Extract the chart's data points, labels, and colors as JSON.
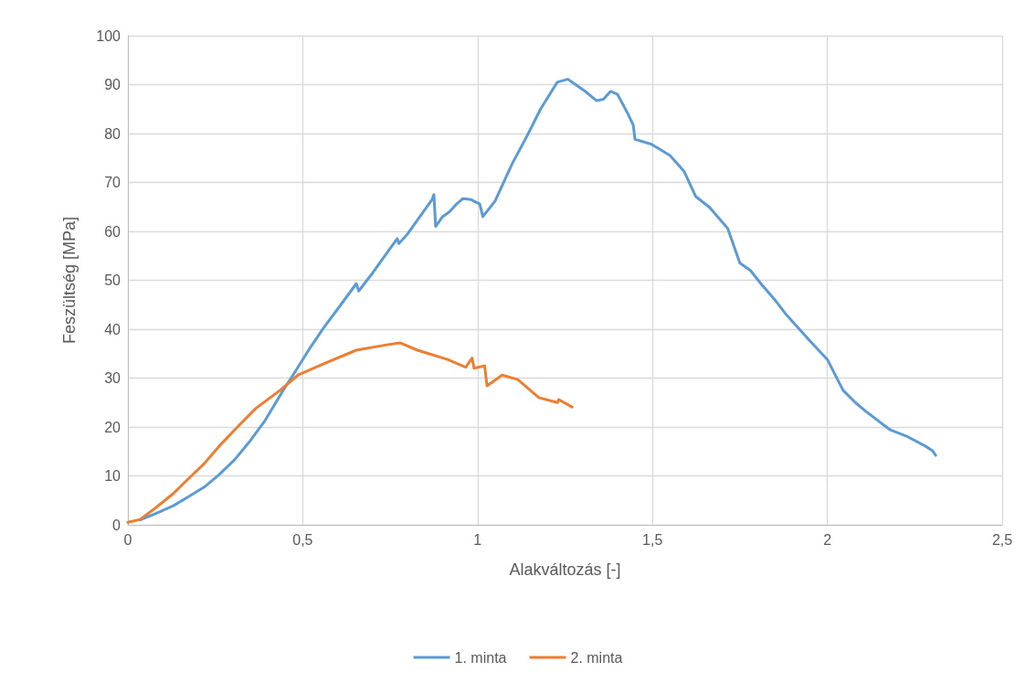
{
  "chart_data": {
    "type": "line",
    "xlabel": "Alakváltozás [-]",
    "ylabel": "Feszültség [MPa]",
    "xlim": [
      0,
      2.5
    ],
    "xticks": [
      0,
      {
        "value": 0.5,
        "label": "0,5"
      },
      1,
      {
        "value": 1.5,
        "label": "1,5"
      },
      2,
      {
        "value": 2.5,
        "label": "2,5"
      }
    ],
    "ylim": [
      0,
      100
    ],
    "yticks": [
      0,
      10,
      20,
      30,
      40,
      50,
      60,
      70,
      80,
      90,
      100
    ],
    "grid": true,
    "legend": "bottom",
    "marker": "none",
    "line_style": "solid",
    "series": [
      {
        "name": "1. minta",
        "color": "#5b9bd5",
        "x": [
          0.035,
          0.08,
          0.13,
          0.17,
          0.218,
          0.26,
          0.305,
          0.35,
          0.392,
          0.444,
          0.48,
          0.522,
          0.56,
          0.609,
          0.653,
          0.66,
          0.7,
          0.75,
          0.77,
          0.775,
          0.8,
          0.85,
          0.87,
          0.875,
          0.88,
          0.9,
          0.92,
          0.94,
          0.958,
          0.98,
          1.006,
          1.015,
          1.05,
          1.07,
          1.1,
          1.14,
          1.18,
          1.228,
          1.258,
          1.28,
          1.31,
          1.34,
          1.36,
          1.38,
          1.4,
          1.43,
          1.445,
          1.45,
          1.497,
          1.55,
          1.59,
          1.624,
          1.663,
          1.715,
          1.75,
          1.78,
          1.81,
          1.85,
          1.88,
          1.95,
          2.0,
          2.045,
          2.08,
          2.11,
          2.18,
          2.23,
          2.28,
          2.3,
          2.31
        ],
        "values": [
          1,
          2.3,
          3.9,
          5.6,
          7.7,
          10.2,
          13.3,
          17.2,
          21.3,
          27.5,
          31.5,
          36.3,
          40.3,
          45,
          49.3,
          47.8,
          51.5,
          56.5,
          58.5,
          57.5,
          59.5,
          64.5,
          66.5,
          67.5,
          61,
          63,
          64,
          65.6,
          66.7,
          66.5,
          65.6,
          63,
          66.2,
          69.3,
          74,
          79.3,
          85,
          90.5,
          91.1,
          90,
          88.5,
          86.7,
          87,
          88.6,
          88,
          84,
          81.7,
          78.8,
          77.8,
          75.5,
          72.3,
          67.1,
          64.9,
          60.6,
          53.5,
          52,
          49.3,
          46,
          43.2,
          37.6,
          33.8,
          27.5,
          25,
          23.2,
          19.4,
          18,
          16.1,
          15.2,
          14.2
        ]
      },
      {
        "name": "2. minta",
        "color": "#ed7d31",
        "x": [
          0,
          0.035,
          0.08,
          0.13,
          0.17,
          0.218,
          0.26,
          0.305,
          0.366,
          0.435,
          0.488,
          0.566,
          0.653,
          0.74,
          0.778,
          0.828,
          0.914,
          0.966,
          0.984,
          0.99,
          1.02,
          1.027,
          1.07,
          1.115,
          1.175,
          1.228,
          1.232,
          1.27
        ],
        "values": [
          0.5,
          1.1,
          3.5,
          6.4,
          9.2,
          12.5,
          16,
          19.4,
          23.8,
          27.5,
          30.7,
          33.1,
          35.7,
          36.8,
          37.2,
          35.7,
          33.8,
          32.2,
          34.1,
          32,
          32.5,
          28.4,
          30.6,
          29.7,
          26,
          25,
          25.6,
          24.1
        ]
      }
    ]
  }
}
